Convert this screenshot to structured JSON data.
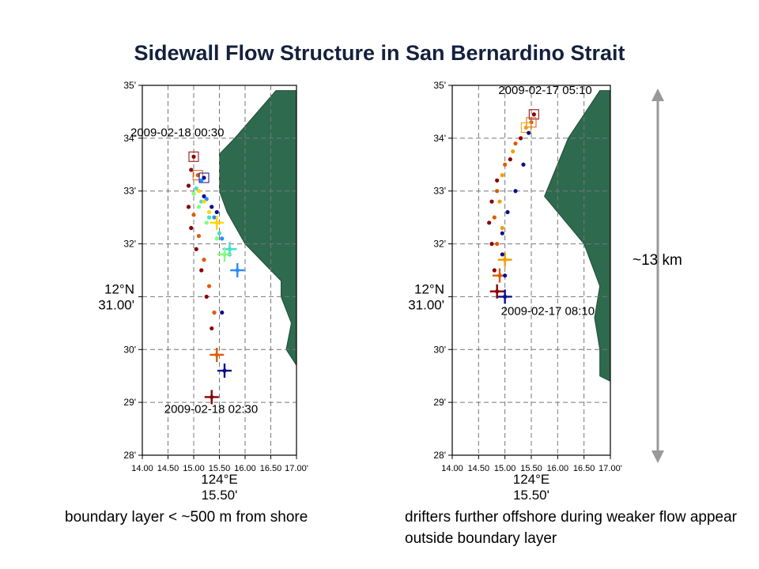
{
  "title": "Sidewall Flow Structure in San Bernardino Strait",
  "colors": {
    "land": "#2e6b4e",
    "grid": "#777777",
    "scale_arrow": "#999999",
    "series": [
      "#8b0000",
      "#e05a00",
      "#f0a000",
      "#0d0d8a",
      "#2a8cff",
      "#40e0d0",
      "#7fff7f",
      "#ffd700"
    ]
  },
  "captions": {
    "left": "boundary layer < ~500 m from shore",
    "right": "drifters further offshore during weaker flow appear outside boundary layer"
  },
  "scale_bar": {
    "label": "~13 km"
  },
  "chart_data": [
    {
      "type": "scatter",
      "title": "",
      "xlim": [
        14.0,
        17.0
      ],
      "ylim": [
        28.0,
        35.0
      ],
      "x_ticks": [
        "14.00",
        "14.50",
        "15.00",
        "15.50",
        "16.00",
        "16.50",
        "17.00'"
      ],
      "y_ticks": [
        "28'",
        "29'",
        "30'",
        "",
        "32'",
        "33'",
        "34'",
        "35'"
      ],
      "y_center_label": [
        "12°N",
        "31.00'"
      ],
      "x_center_label": [
        "124°E",
        "15.50'"
      ],
      "grid": true,
      "start_time": "2009-02-18 00:30",
      "end_time": "2009-02-18 02:30",
      "land_polygon": [
        [
          17.0,
          34.9
        ],
        [
          16.6,
          34.9
        ],
        [
          15.8,
          34.0
        ],
        [
          15.5,
          33.7
        ],
        [
          15.5,
          33.0
        ],
        [
          15.65,
          32.6
        ],
        [
          16.0,
          32.0
        ],
        [
          16.7,
          31.3
        ],
        [
          16.7,
          31.0
        ],
        [
          16.9,
          30.5
        ],
        [
          16.8,
          30.0
        ],
        [
          17.0,
          29.7
        ]
      ],
      "series": [
        {
          "color": "#8b0000",
          "x": [
            15.0,
            14.95,
            14.9,
            14.9,
            14.95,
            15.05,
            15.15,
            15.25,
            15.35,
            15.35
          ],
          "y": [
            33.65,
            33.4,
            33.1,
            32.7,
            32.3,
            31.9,
            31.5,
            31.0,
            30.4,
            29.1
          ]
        },
        {
          "color": "#e05a00",
          "x": [
            15.08,
            15.0,
            15.0,
            15.1,
            15.2,
            15.3,
            15.4,
            15.45
          ],
          "y": [
            33.3,
            32.95,
            32.55,
            32.15,
            31.7,
            31.2,
            30.7,
            29.9
          ]
        },
        {
          "color": "#0d0d8a",
          "x": [
            15.2,
            15.2,
            15.35,
            15.45,
            15.55,
            15.6
          ],
          "y": [
            33.25,
            32.9,
            32.7,
            32.6,
            30.7,
            29.6
          ]
        },
        {
          "color": "#2a8cff",
          "x": [
            15.15,
            15.25,
            15.4,
            15.55,
            15.7,
            15.85
          ],
          "y": [
            33.2,
            32.85,
            32.5,
            32.1,
            31.8,
            31.5
          ]
        },
        {
          "color": "#40e0d0",
          "x": [
            15.05,
            15.15,
            15.3,
            15.5,
            15.7
          ],
          "y": [
            33.05,
            32.8,
            32.5,
            32.2,
            31.9
          ]
        },
        {
          "color": "#7fff7f",
          "x": [
            15.0,
            15.1,
            15.25,
            15.45,
            15.6
          ],
          "y": [
            32.95,
            32.7,
            32.4,
            32.1,
            31.8
          ]
        },
        {
          "color": "#ffd700",
          "x": [
            15.1,
            15.2,
            15.3,
            15.45
          ],
          "y": [
            33.0,
            32.8,
            32.6,
            32.4
          ]
        }
      ]
    },
    {
      "type": "scatter",
      "title": "",
      "xlim": [
        14.0,
        17.0
      ],
      "ylim": [
        28.0,
        35.0
      ],
      "x_ticks": [
        "14.00",
        "14.50",
        "15.00",
        "15.50",
        "16.00",
        "16.50",
        "17.00'"
      ],
      "y_ticks": [
        "28'",
        "29'",
        "30'",
        "",
        "32'",
        "33'",
        "34'",
        "35'"
      ],
      "y_center_label": [
        "12°N",
        "31.00'"
      ],
      "x_center_label": [
        "124°E",
        "15.50'"
      ],
      "grid": true,
      "start_time": "2009-02-17 05:10",
      "end_time": "2009-02-17 08:10",
      "land_polygon": [
        [
          17.0,
          34.9
        ],
        [
          16.8,
          34.9
        ],
        [
          16.2,
          34.0
        ],
        [
          15.75,
          32.9
        ],
        [
          16.5,
          32.0
        ],
        [
          16.8,
          31.2
        ],
        [
          16.7,
          30.6
        ],
        [
          16.8,
          30.0
        ],
        [
          16.8,
          29.5
        ],
        [
          17.0,
          29.4
        ]
      ],
      "series": [
        {
          "color": "#8b0000",
          "x": [
            15.55,
            15.3,
            15.1,
            14.85,
            14.75,
            14.7,
            14.75,
            14.8,
            14.85
          ],
          "y": [
            34.45,
            34.0,
            33.6,
            33.2,
            32.8,
            32.4,
            32.0,
            31.5,
            31.1
          ]
        },
        {
          "color": "#e05a00",
          "x": [
            15.5,
            15.2,
            15.0,
            14.85,
            14.8,
            14.85,
            14.9
          ],
          "y": [
            34.3,
            33.9,
            33.5,
            33.0,
            32.5,
            32.0,
            31.4
          ]
        },
        {
          "color": "#f0a000",
          "x": [
            15.4,
            15.15,
            14.95,
            14.9,
            14.95,
            15.0
          ],
          "y": [
            34.2,
            33.75,
            33.3,
            32.8,
            32.3,
            31.7
          ]
        },
        {
          "color": "#0d0d8a",
          "x": [
            15.45,
            15.35,
            15.2,
            15.05,
            14.95,
            14.95,
            15.0,
            15.0
          ],
          "y": [
            34.1,
            33.5,
            33.0,
            32.6,
            32.2,
            31.8,
            31.4,
            31.0
          ]
        }
      ]
    }
  ]
}
